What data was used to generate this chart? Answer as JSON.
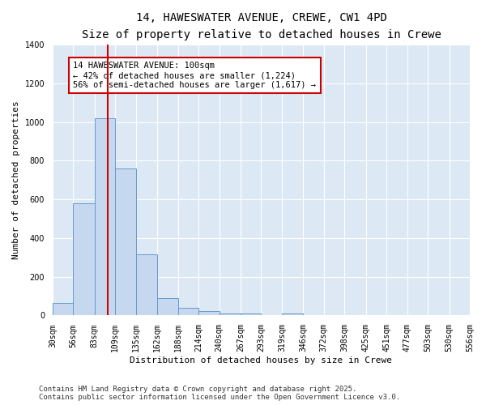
{
  "title_line1": "14, HAWESWATER AVENUE, CREWE, CW1 4PD",
  "title_line2": "Size of property relative to detached houses in Crewe",
  "xlabel": "Distribution of detached houses by size in Crewe",
  "ylabel": "Number of detached properties",
  "bar_color": "#c5d8f0",
  "bar_edge_color": "#6699cc",
  "background_color": "#dde8f5",
  "grid_color": "#ffffff",
  "annotation_text": "14 HAWESWATER AVENUE: 100sqm\n← 42% of detached houses are smaller (1,224)\n56% of semi-detached houses are larger (1,617) →",
  "annotation_box_color": "#ffffff",
  "annotation_edge_color": "#cc0000",
  "red_line_x": 100,
  "red_line_color": "#cc0000",
  "bins": [
    30,
    56,
    83,
    109,
    135,
    162,
    188,
    214,
    240,
    267,
    293,
    319,
    346,
    372,
    398,
    425,
    451,
    477,
    503,
    530,
    556
  ],
  "counts": [
    65,
    580,
    1020,
    760,
    315,
    90,
    38,
    22,
    12,
    12,
    0,
    12,
    0,
    0,
    0,
    0,
    0,
    0,
    0,
    0
  ],
  "ylim": [
    0,
    1400
  ],
  "yticks": [
    0,
    200,
    400,
    600,
    800,
    1000,
    1200,
    1400
  ],
  "footer_text": "Contains HM Land Registry data © Crown copyright and database right 2025.\nContains public sector information licensed under the Open Government Licence v3.0.",
  "title_fontsize": 10,
  "subtitle_fontsize": 9,
  "axis_label_fontsize": 8,
  "tick_fontsize": 7,
  "annotation_fontsize": 7.5,
  "footer_fontsize": 6.5
}
